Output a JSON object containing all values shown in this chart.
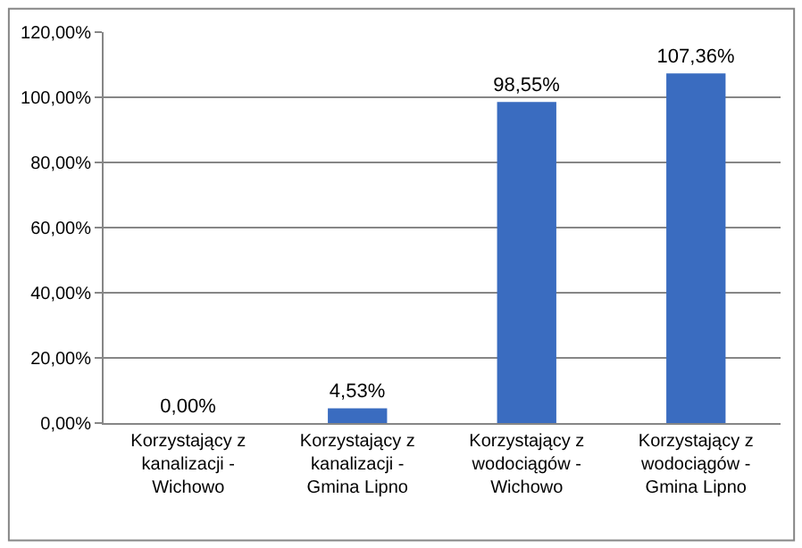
{
  "chart_data": {
    "type": "bar",
    "categories": [
      "Korzystający z kanalizacji - Wichowo",
      "Korzystający z kanalizacji - Gmina Lipno",
      "Korzystający z wodociągów - Wichowo",
      "Korzystający z wodociągów - Gmina Lipno"
    ],
    "values": [
      0,
      4.53,
      98.55,
      107.36
    ],
    "value_labels": [
      "0,00%",
      "4,53%",
      "98,55%",
      "107,36%"
    ],
    "color": "#3a6cc0",
    "ylim": [
      0,
      120
    ],
    "yticks": [
      {
        "value": 0,
        "label": "0,00%"
      },
      {
        "value": 20,
        "label": "20,00%"
      },
      {
        "value": 40,
        "label": "40,00%"
      },
      {
        "value": 60,
        "label": "60,00%"
      },
      {
        "value": 80,
        "label": "80,00%"
      },
      {
        "value": 100,
        "label": "100,00%"
      },
      {
        "value": 120,
        "label": "120,00%"
      }
    ],
    "grid": "y"
  }
}
